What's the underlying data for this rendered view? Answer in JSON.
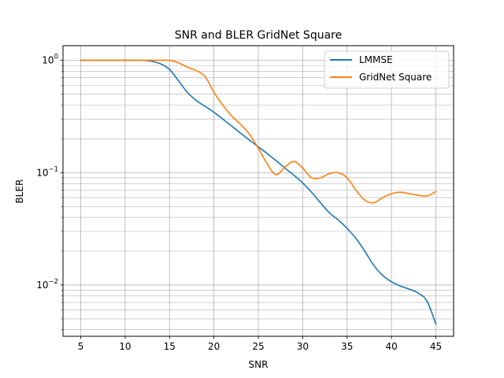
{
  "chart_data": {
    "type": "line",
    "title": "SNR and BLER GridNet Square",
    "xlabel": "SNR",
    "ylabel": "BLER",
    "xlim": [
      3,
      47
    ],
    "ylim": [
      0.0035,
      1.35
    ],
    "yscale": "log",
    "grid": true,
    "legend_position": "top-right",
    "x_ticks": [
      5,
      10,
      15,
      20,
      25,
      30,
      35,
      40,
      45
    ],
    "y_ticks": [
      {
        "value": 1,
        "label": "10",
        "exp": "0"
      },
      {
        "value": 0.1,
        "label": "10",
        "exp": "−1"
      },
      {
        "value": 0.01,
        "label": "10",
        "exp": "−2"
      }
    ],
    "series": [
      {
        "name": "LMMSE",
        "color": "#1f77b4",
        "x": [
          5,
          7,
          9,
          11,
          12,
          13,
          14,
          15,
          16,
          17,
          18,
          19,
          20,
          21,
          22,
          23,
          24,
          25,
          26,
          27,
          28,
          29,
          30,
          31,
          32,
          33,
          34,
          35,
          36,
          37,
          38,
          39,
          40,
          41,
          42,
          43,
          44,
          45
        ],
        "y": [
          1.0,
          1.0,
          1.0,
          1.0,
          1.0,
          0.98,
          0.93,
          0.83,
          0.66,
          0.52,
          0.44,
          0.39,
          0.345,
          0.3,
          0.26,
          0.225,
          0.195,
          0.17,
          0.148,
          0.128,
          0.11,
          0.095,
          0.081,
          0.067,
          0.054,
          0.044,
          0.038,
          0.032,
          0.026,
          0.02,
          0.015,
          0.0122,
          0.0107,
          0.0098,
          0.0092,
          0.0085,
          0.0072,
          0.0045
        ]
      },
      {
        "name": "GridNet Square",
        "color": "#ff7f0e",
        "x": [
          5,
          7,
          9,
          11,
          13,
          14,
          15,
          16,
          17,
          18,
          19,
          20,
          21,
          22,
          23,
          24,
          25,
          26,
          27,
          28,
          29,
          30,
          31,
          32,
          33,
          34,
          35,
          36,
          37,
          38,
          39,
          40,
          41,
          42,
          43,
          44,
          45
        ],
        "y": [
          1.0,
          1.0,
          1.0,
          1.0,
          1.0,
          1.0,
          1.0,
          0.95,
          0.87,
          0.81,
          0.72,
          0.52,
          0.4,
          0.32,
          0.27,
          0.22,
          0.165,
          0.12,
          0.096,
          0.112,
          0.126,
          0.11,
          0.09,
          0.09,
          0.098,
          0.1,
          0.09,
          0.07,
          0.057,
          0.054,
          0.06,
          0.065,
          0.067,
          0.065,
          0.063,
          0.062,
          0.068
        ]
      }
    ]
  }
}
